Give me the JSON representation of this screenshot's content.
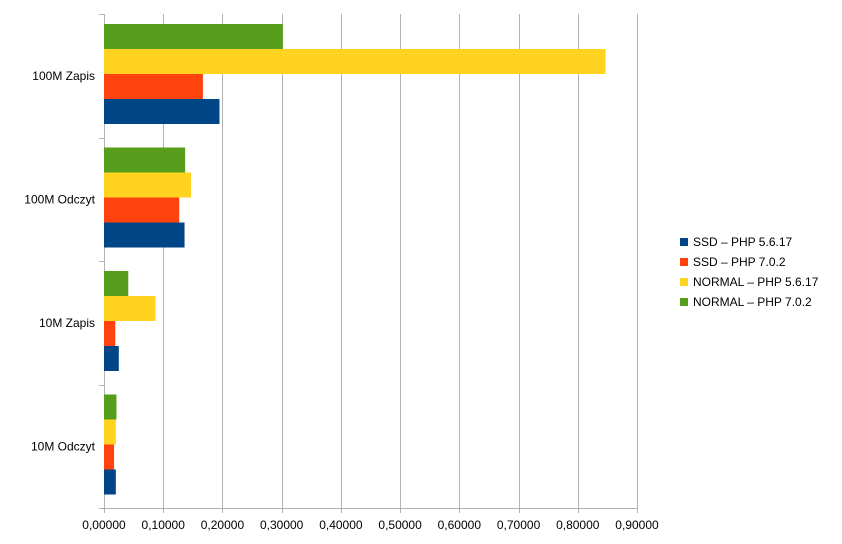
{
  "chart_data": {
    "type": "bar",
    "orientation": "horizontal",
    "title": "",
    "xlabel": "",
    "ylabel": "",
    "categories": [
      "100M Zapis",
      "100M Odczyt",
      "10M Zapis",
      "10M Odczyt"
    ],
    "xlim": [
      0,
      0.9
    ],
    "x_ticks": [
      0,
      0.1,
      0.2,
      0.3,
      0.4,
      0.5,
      0.6,
      0.7,
      0.8,
      0.9
    ],
    "x_tick_labels": [
      "0,00000",
      "0,10000",
      "0,20000",
      "0,30000",
      "0,40000",
      "0,50000",
      "0,60000",
      "0,70000",
      "0,80000",
      "0,90000"
    ],
    "grid": true,
    "legend_position": "right",
    "series": [
      {
        "name": "SSD – PHP 5.6.17",
        "color": "#004586",
        "values": [
          0.195,
          0.136,
          0.025,
          0.02
        ]
      },
      {
        "name": "SSD – PHP 7.0.2",
        "color": "#ff420e",
        "values": [
          0.167,
          0.127,
          0.019,
          0.017
        ]
      },
      {
        "name": "NORMAL – PHP 5.6.17",
        "color": "#ffd320",
        "values": [
          0.847,
          0.147,
          0.087,
          0.02
        ]
      },
      {
        "name": "NORMAL – PHP 7.0.2",
        "color": "#579d1c",
        "values": [
          0.302,
          0.137,
          0.041,
          0.021
        ]
      }
    ]
  }
}
